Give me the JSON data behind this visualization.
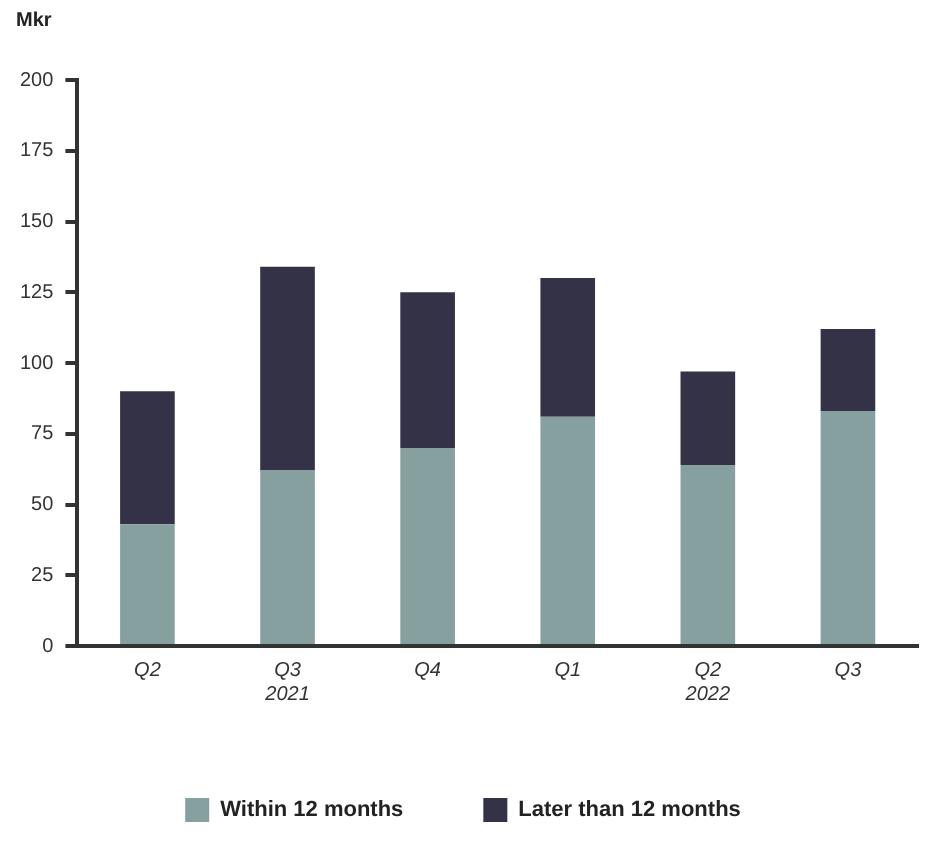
{
  "chart_data": {
    "type": "bar",
    "ylabel": "Mkr",
    "categories": [
      "Q2",
      "Q3\n2021",
      "Q4",
      "Q1",
      "Q2\n2022",
      "Q3"
    ],
    "series": [
      {
        "name": "Within 12 months",
        "color": "#86a0a0",
        "values": [
          43,
          62,
          70,
          81,
          64,
          83
        ]
      },
      {
        "name": "Later than 12 months",
        "color": "#333246",
        "values": [
          47,
          72,
          55,
          49,
          33,
          29
        ]
      }
    ],
    "stacked": true,
    "ylim": [
      0,
      200
    ],
    "yticks": [
      0,
      25,
      50,
      75,
      100,
      125,
      150,
      175,
      200
    ],
    "grid": false,
    "legend": "bottom"
  }
}
